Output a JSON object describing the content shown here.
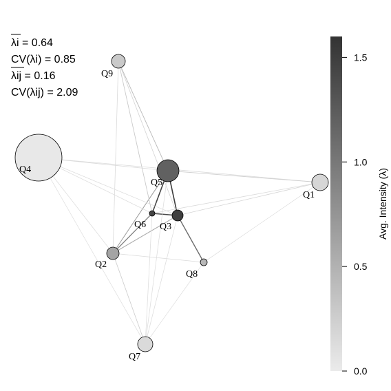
{
  "chart_data": {
    "type": "network",
    "stats": {
      "mean_lambda_i": "λi = 0.64",
      "cv_lambda_i": "CV(λi) = 0.85",
      "mean_lambda_ij": "λij = 0.16",
      "cv_lambda_ij": "CV(λij) = 2.09"
    },
    "colorbar": {
      "label": "Avg. Intensity (λ)",
      "range": [
        0,
        1.6
      ],
      "ticks": [
        {
          "value": 0.0,
          "label": "0.0"
        },
        {
          "value": 0.5,
          "label": "0.5"
        },
        {
          "value": 1.0,
          "label": "1.0"
        },
        {
          "value": 1.5,
          "label": "1.5"
        }
      ]
    },
    "nodes": [
      {
        "id": "Q1",
        "label": "Q1",
        "intensity": 0.18
      },
      {
        "id": "Q2",
        "label": "Q2",
        "intensity": 0.62
      },
      {
        "id": "Q3",
        "label": "Q3",
        "intensity": 1.5
      },
      {
        "id": "Q4",
        "label": "Q4",
        "intensity": 0.03
      },
      {
        "id": "Q5",
        "label": "Q5",
        "intensity": 1.2
      },
      {
        "id": "Q6",
        "label": "Q6",
        "intensity": 1.45
      },
      {
        "id": "Q7",
        "label": "Q7",
        "intensity": 0.15
      },
      {
        "id": "Q8",
        "label": "Q8",
        "intensity": 0.45
      },
      {
        "id": "Q9",
        "label": "Q9",
        "intensity": 0.3
      }
    ],
    "edges": [
      {
        "source": "Q5",
        "target": "Q3",
        "weight": 1.5
      },
      {
        "source": "Q5",
        "target": "Q6",
        "weight": 1.45
      },
      {
        "source": "Q6",
        "target": "Q3",
        "weight": 1.4
      },
      {
        "source": "Q3",
        "target": "Q8",
        "weight": 1.1
      },
      {
        "source": "Q6",
        "target": "Q2",
        "weight": 0.9
      },
      {
        "source": "Q5",
        "target": "Q2",
        "weight": 0.65
      },
      {
        "source": "Q3",
        "target": "Q2",
        "weight": 0.55
      },
      {
        "source": "Q9",
        "target": "Q5",
        "weight": 0.4
      },
      {
        "source": "Q9",
        "target": "Q6",
        "weight": 0.3
      },
      {
        "source": "Q9",
        "target": "Q3",
        "weight": 0.2
      },
      {
        "source": "Q9",
        "target": "Q2",
        "weight": 0.15
      },
      {
        "source": "Q4",
        "target": "Q5",
        "weight": 0.15
      },
      {
        "source": "Q4",
        "target": "Q1",
        "weight": 0.15
      },
      {
        "source": "Q4",
        "target": "Q3",
        "weight": 0.12
      },
      {
        "source": "Q4",
        "target": "Q6",
        "weight": 0.12
      },
      {
        "source": "Q4",
        "target": "Q2",
        "weight": 0.12
      },
      {
        "source": "Q4",
        "target": "Q7",
        "weight": 0.1
      },
      {
        "source": "Q5",
        "target": "Q1",
        "weight": 0.25
      },
      {
        "source": "Q3",
        "target": "Q1",
        "weight": 0.2
      },
      {
        "source": "Q6",
        "target": "Q1",
        "weight": 0.15
      },
      {
        "source": "Q8",
        "target": "Q1",
        "weight": 0.1
      },
      {
        "source": "Q2",
        "target": "Q7",
        "weight": 0.25
      },
      {
        "source": "Q2",
        "target": "Q8",
        "weight": 0.15
      },
      {
        "source": "Q6",
        "target": "Q7",
        "weight": 0.12
      },
      {
        "source": "Q3",
        "target": "Q7",
        "weight": 0.12
      },
      {
        "source": "Q5",
        "target": "Q7",
        "weight": 0.12
      },
      {
        "source": "Q8",
        "target": "Q7",
        "weight": 0.1
      }
    ]
  }
}
